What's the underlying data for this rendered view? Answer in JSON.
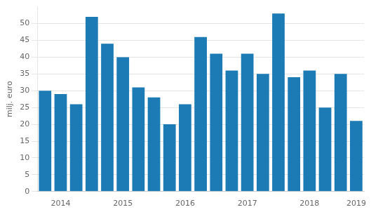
{
  "chart_data": {
    "type": "bar",
    "ylabel": "milj. euro",
    "categories": [
      null,
      "2014",
      null,
      null,
      null,
      "2015",
      null,
      null,
      null,
      "2016",
      null,
      null,
      null,
      "2017",
      null,
      null,
      null,
      "2018",
      null,
      null,
      "2019"
    ],
    "values": [
      30,
      29,
      26,
      52,
      44,
      40,
      31,
      28,
      20,
      26,
      46,
      41,
      36,
      41,
      35,
      53,
      34,
      36,
      25,
      35,
      21
    ],
    "color": "#1c7ab5",
    "ylim": [
      0,
      55
    ],
    "yticks": [
      0,
      5,
      10,
      15,
      20,
      25,
      30,
      35,
      40,
      45,
      50
    ],
    "grid": true
  }
}
